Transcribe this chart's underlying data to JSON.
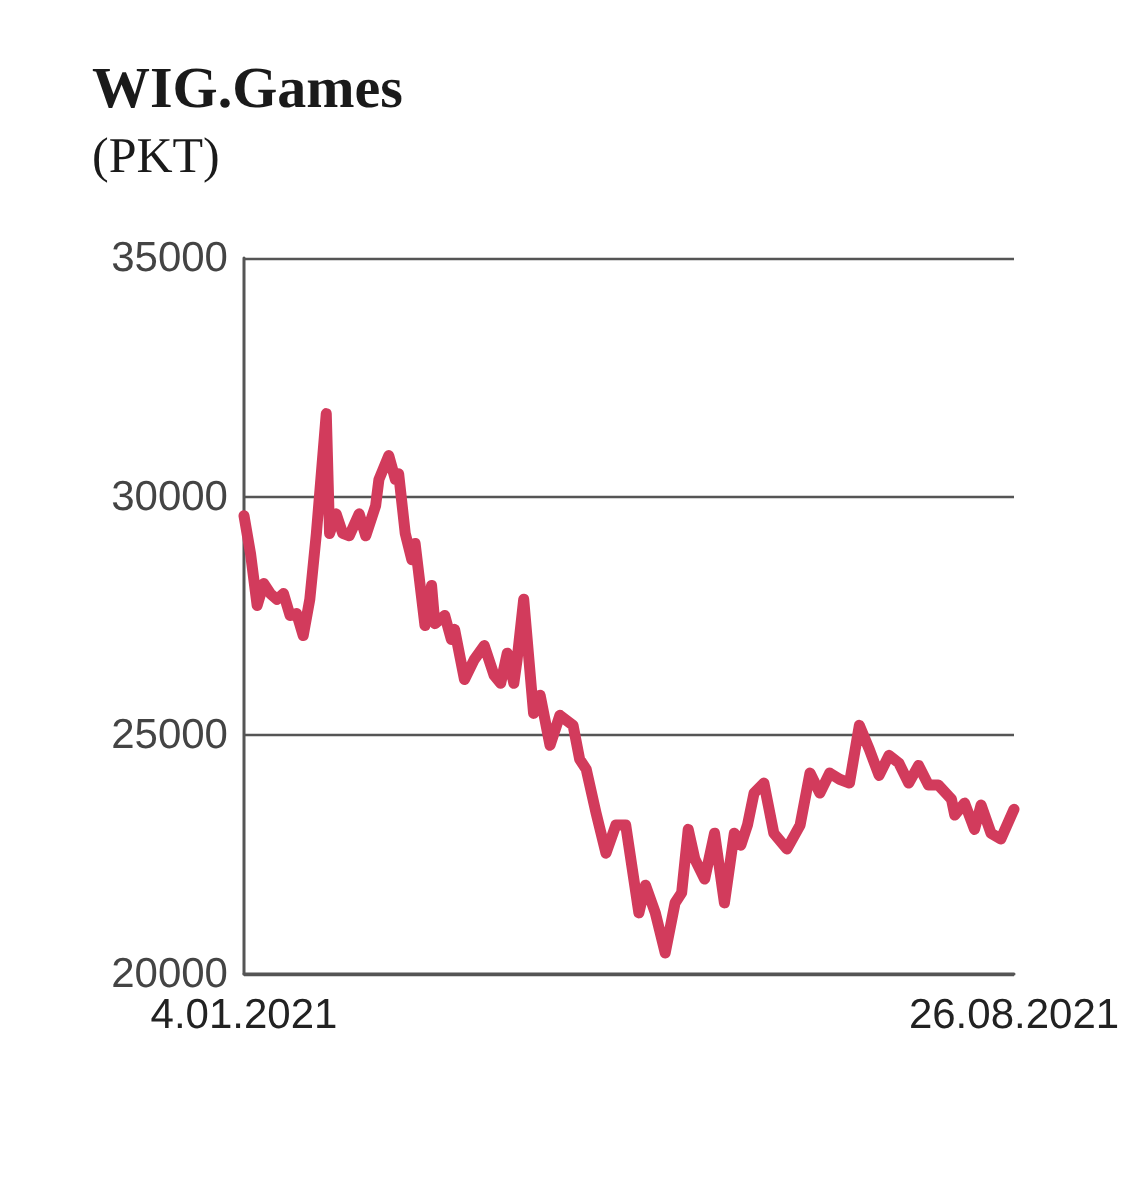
{
  "chart_data": {
    "type": "line",
    "title": "WIG.Games",
    "subtitle": "(PKT)",
    "x": [
      "2021-01-04",
      "2021-01-06",
      "2021-01-08",
      "2021-01-10",
      "2021-01-12",
      "2021-01-14",
      "2021-01-16",
      "2021-01-18",
      "2021-01-20",
      "2021-01-22",
      "2021-01-24",
      "2021-01-26",
      "2021-01-29",
      "2021-01-30",
      "2021-02-01",
      "2021-02-03",
      "2021-02-05",
      "2021-02-08",
      "2021-02-10",
      "2021-02-13",
      "2021-02-14",
      "2021-02-17",
      "2021-02-19",
      "2021-02-20",
      "2021-02-22",
      "2021-02-24",
      "2021-02-25",
      "2021-02-28",
      "2021-03-02",
      "2021-03-03",
      "2021-03-06",
      "2021-03-08",
      "2021-03-09",
      "2021-03-12",
      "2021-03-15",
      "2021-03-18",
      "2021-03-21",
      "2021-03-23",
      "2021-03-25",
      "2021-03-27",
      "2021-03-28",
      "2021-03-30",
      "2021-04-02",
      "2021-04-04",
      "2021-04-07",
      "2021-04-10",
      "2021-04-14",
      "2021-04-16",
      "2021-04-18",
      "2021-04-21",
      "2021-04-24",
      "2021-04-27",
      "2021-04-30",
      "2021-05-04",
      "2021-05-06",
      "2021-05-09",
      "2021-05-12",
      "2021-05-15",
      "2021-05-17",
      "2021-05-19",
      "2021-05-21",
      "2021-05-24",
      "2021-05-27",
      "2021-05-30",
      "2021-06-02",
      "2021-06-04",
      "2021-06-06",
      "2021-06-08",
      "2021-06-11",
      "2021-06-14",
      "2021-06-18",
      "2021-06-22",
      "2021-06-25",
      "2021-06-28",
      "2021-07-01",
      "2021-07-04",
      "2021-07-07",
      "2021-07-10",
      "2021-07-13",
      "2021-07-16",
      "2021-07-19",
      "2021-07-22",
      "2021-07-25",
      "2021-07-28",
      "2021-07-31",
      "2021-08-03",
      "2021-08-07",
      "2021-08-08",
      "2021-08-11",
      "2021-08-14",
      "2021-08-16",
      "2021-08-19",
      "2021-08-22",
      "2021-08-26"
    ],
    "series": [
      {
        "color": "#d23b5c",
        "values": [
          29600,
          28800,
          27720,
          28180,
          27970,
          27850,
          27970,
          27510,
          27550,
          27090,
          27850,
          29230,
          31740,
          29230,
          29640,
          29230,
          29180,
          29640,
          29180,
          29810,
          30360,
          30860,
          30360,
          30480,
          29230,
          28680,
          29020,
          27300,
          28140,
          27340,
          27510,
          27010,
          27220,
          26170,
          26590,
          26880,
          26260,
          26090,
          26720,
          26090,
          26590,
          27850,
          25460,
          25840,
          24790,
          25420,
          25210,
          24500,
          24290,
          23370,
          22530,
          23120,
          23120,
          21280,
          21860,
          21280,
          20440,
          21490,
          21700,
          23030,
          22410,
          21990,
          22950,
          21490,
          22950,
          22700,
          23120,
          23790,
          24000,
          22950,
          22620,
          23120,
          24210,
          23790,
          24210,
          24080,
          24000,
          25210,
          24710,
          24160,
          24580,
          24420,
          24000,
          24370,
          23960,
          23960,
          23660,
          23330,
          23580,
          23030,
          23540,
          22950,
          22830,
          23450
        ]
      }
    ],
    "xlim": [
      "2021-01-04",
      "2021-08-26"
    ],
    "xticks": [
      {
        "value": "2021-01-04",
        "label": "4.01.2021"
      },
      {
        "value": "2021-08-26",
        "label": "26.08.2021"
      }
    ],
    "ylim": [
      20000,
      35000
    ],
    "yticks": [
      20000,
      25000,
      30000,
      35000
    ],
    "grid": "y",
    "marker": "none",
    "line_style": "solid"
  }
}
